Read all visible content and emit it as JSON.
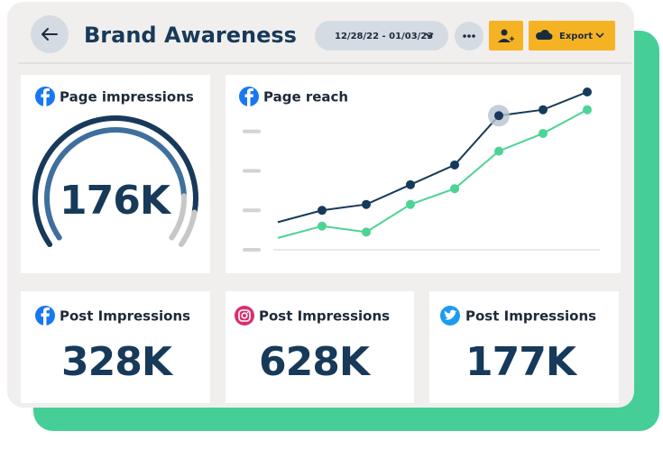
{
  "header": {
    "title": "Brand Awareness",
    "date_range": "12/28/22 - 01/03/23",
    "export": "Export"
  },
  "cards": [
    {
      "title": "Page impressions",
      "value": "176K"
    },
    {
      "title": "Post Impressions",
      "value": "328K"
    },
    {
      "title": "Post Impressions",
      "value": "628K"
    },
    {
      "title": "Post Impressions",
      "value": "177K"
    }
  ],
  "page_reach": {
    "title": "Page reach",
    "chart_data": {
      "type": "line",
      "categories": [
        null,
        null,
        null,
        null,
        null,
        null,
        null,
        null
      ],
      "series": [
        {
          "color": "#173a5a",
          "values": [
            0.7,
            1.0,
            1.15,
            1.65,
            2.15,
            3.4,
            3.55,
            4.0
          ]
        },
        {
          "color": "#4cd494",
          "values": [
            0.3,
            0.6,
            0.45,
            1.15,
            1.55,
            2.5,
            2.95,
            3.55
          ]
        }
      ],
      "ylim": [
        0,
        4
      ],
      "yticks": [
        0,
        1,
        2,
        3
      ]
    }
  }
}
